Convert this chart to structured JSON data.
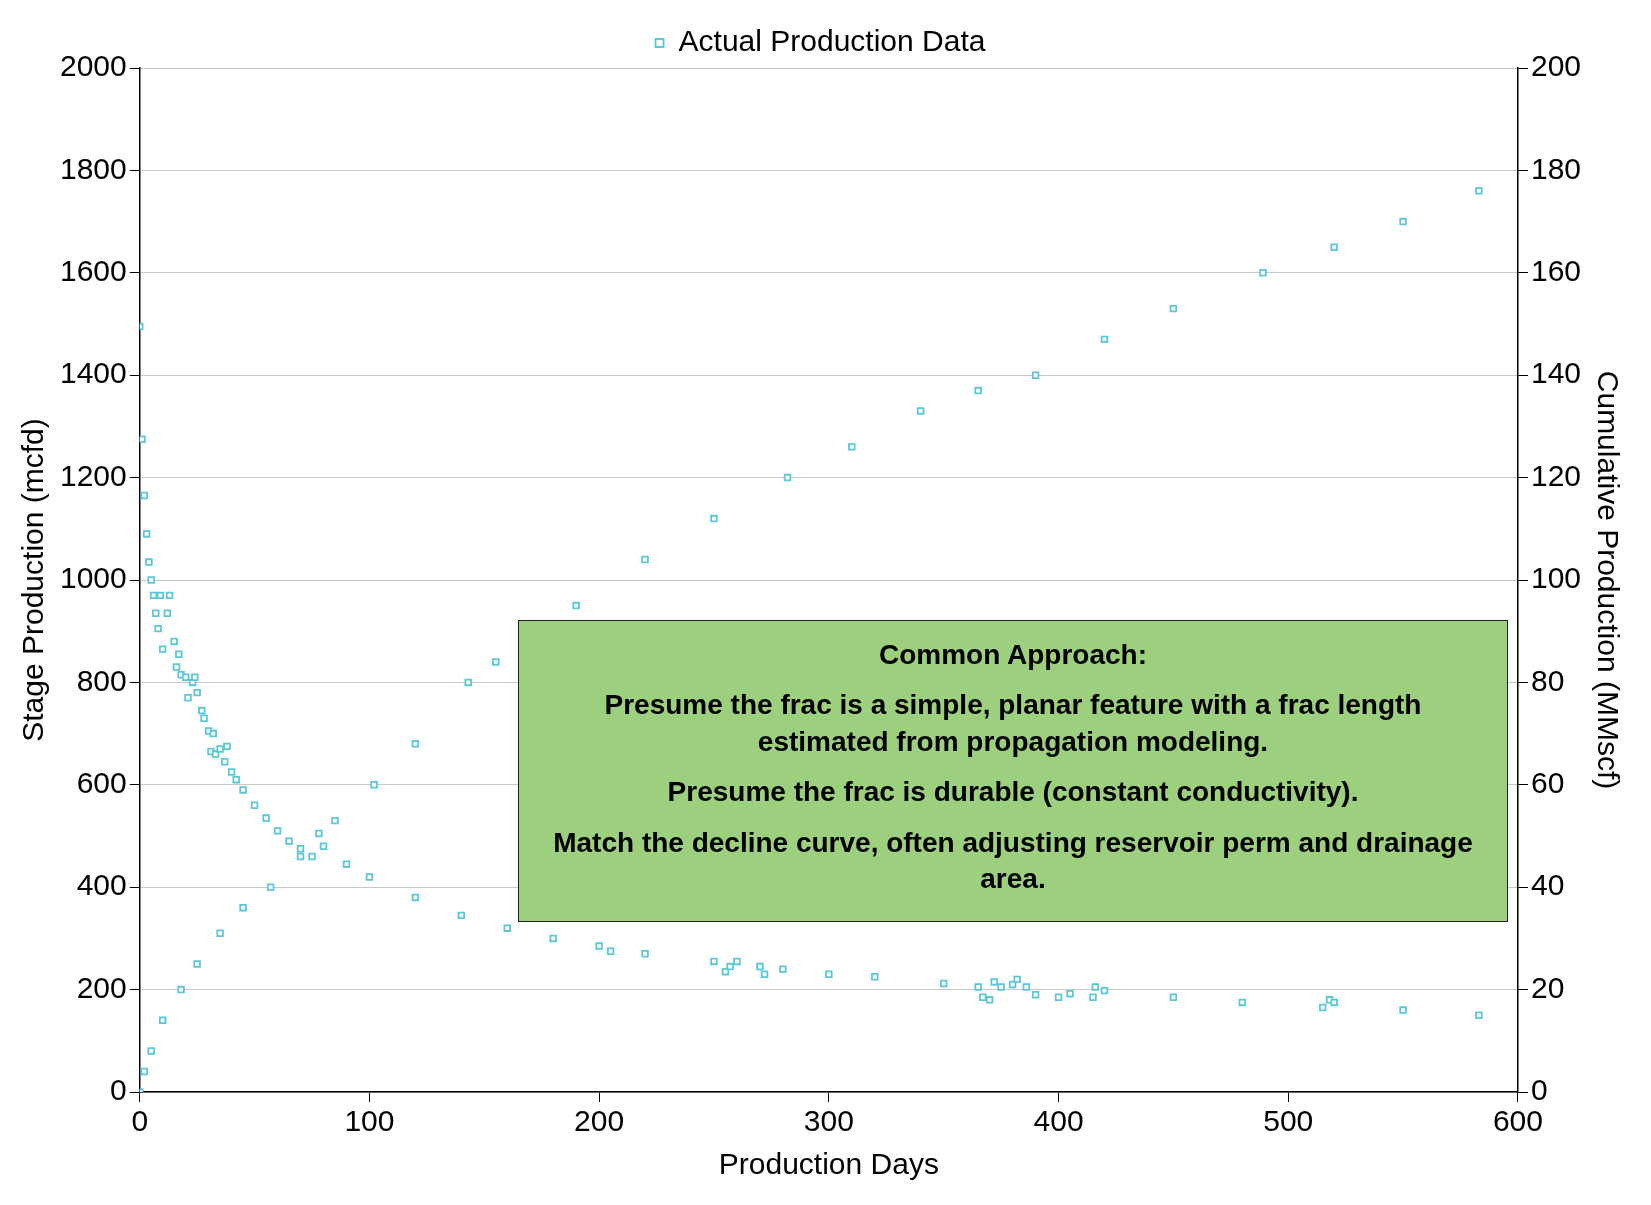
{
  "chart_data": {
    "type": "scatter",
    "xlabel": "Production Days",
    "ylabel": "Stage Production (mcfd)",
    "y2label": "Cumulative Production (MMscf)",
    "xlim": [
      0,
      600
    ],
    "xticks": [
      0,
      100,
      200,
      300,
      400,
      500,
      600
    ],
    "ylim": [
      0,
      2000
    ],
    "yticks": [
      0,
      200,
      400,
      600,
      800,
      1000,
      1200,
      1400,
      1600,
      1800,
      2000
    ],
    "y2lim": [
      0,
      200
    ],
    "y2ticks": [
      0,
      20,
      40,
      60,
      80,
      100,
      120,
      140,
      160,
      180,
      200
    ],
    "grid": "y",
    "legend": "top",
    "marker": "square",
    "series": [
      {
        "name": "Actual Production Data",
        "color": "#5bc8d6",
        "x": [
          0,
          1,
          2,
          3,
          4,
          5,
          6,
          7,
          8,
          9,
          10,
          12,
          13,
          15,
          16,
          17,
          18,
          20,
          21,
          23,
          24,
          25,
          27,
          28,
          30,
          31,
          32,
          33,
          35,
          37,
          38,
          40,
          42,
          45,
          50,
          55,
          60,
          65,
          70,
          75,
          78,
          80,
          90,
          100,
          120,
          140,
          160,
          180,
          200,
          205,
          220,
          250,
          255,
          257,
          260,
          270,
          272,
          280,
          300,
          320,
          350,
          365,
          367,
          370,
          372,
          375,
          380,
          382,
          386,
          390,
          400,
          405,
          415,
          416,
          420,
          450,
          480,
          515,
          518,
          520,
          550,
          583
        ],
        "values": [
          1495,
          1275,
          1165,
          1090,
          1035,
          1000,
          970,
          935,
          905,
          970,
          865,
          935,
          970,
          880,
          830,
          855,
          815,
          810,
          770,
          800,
          810,
          780,
          745,
          730,
          705,
          665,
          700,
          660,
          670,
          645,
          675,
          625,
          610,
          590,
          560,
          535,
          510,
          490,
          475,
          460,
          505,
          480,
          445,
          420,
          380,
          345,
          320,
          300,
          285,
          275,
          270,
          255,
          235,
          245,
          255,
          245,
          230,
          240,
          230,
          225,
          212,
          205,
          185,
          180,
          215,
          205,
          210,
          220,
          205,
          190,
          185,
          192,
          185,
          205,
          198,
          185,
          175,
          165,
          180,
          175,
          160,
          150
        ]
      },
      {
        "color": "#5bc8d6",
        "axis": "y2",
        "x": [
          0,
          2,
          5,
          10,
          18,
          25,
          35,
          45,
          57,
          70,
          85,
          102,
          120,
          143,
          155,
          190,
          220,
          250,
          282,
          310,
          340,
          365,
          390,
          420,
          450,
          489,
          520,
          550,
          583
        ],
        "values": [
          0,
          4,
          8,
          14,
          20,
          25,
          31,
          36,
          40,
          46,
          53,
          60,
          68,
          80,
          84,
          95,
          104,
          112,
          120,
          126,
          133,
          137,
          140,
          147,
          153,
          160,
          165,
          170,
          176
        ]
      }
    ],
    "annotations": [
      "Common Approach:",
      "Presume the frac is a simple, planar feature with a frac length estimated from propagation modeling.",
      "Presume the frac is durable (constant conductivity).",
      "Match the decline curve, often adjusting reservoir perm and drainage area."
    ]
  }
}
